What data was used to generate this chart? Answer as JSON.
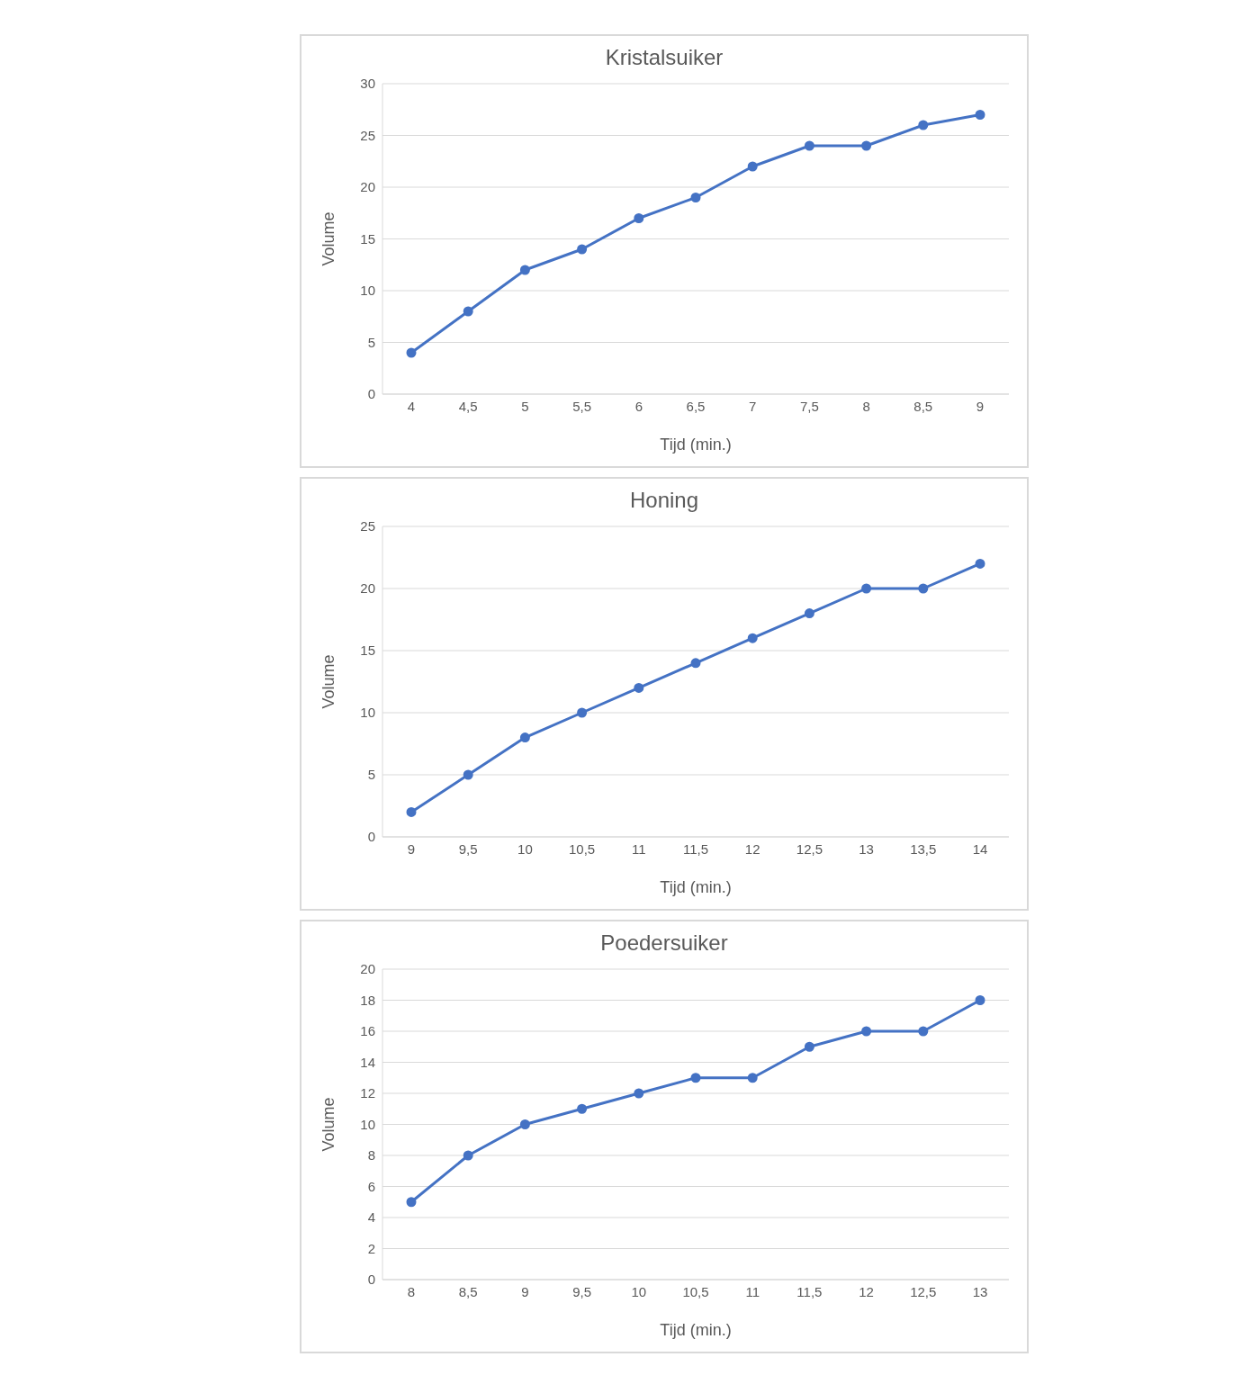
{
  "chart_data": [
    {
      "type": "line",
      "title": "Kristalsuiker",
      "xlabel": "Tijd (min.)",
      "ylabel": "Volume",
      "categories": [
        "4",
        "4,5",
        "5",
        "5,5",
        "6",
        "6,5",
        "7",
        "7,5",
        "8",
        "8,5",
        "9"
      ],
      "series": [
        {
          "color": "#4472c4",
          "values": [
            4,
            8,
            12,
            14,
            17,
            19,
            22,
            24,
            24,
            26,
            27
          ]
        }
      ],
      "ylim": [
        0,
        30
      ],
      "yticks": [
        0,
        5,
        10,
        15,
        20,
        25,
        30
      ],
      "grid": "y",
      "marker": "circle",
      "line_style": "solid"
    },
    {
      "type": "line",
      "title": "Honing",
      "xlabel": "Tijd (min.)",
      "ylabel": "Volume",
      "categories": [
        "9",
        "9,5",
        "10",
        "10,5",
        "11",
        "11,5",
        "12",
        "12,5",
        "13",
        "13,5",
        "14"
      ],
      "series": [
        {
          "color": "#4472c4",
          "values": [
            2,
            5,
            8,
            10,
            12,
            14,
            16,
            18,
            20,
            20,
            22
          ]
        }
      ],
      "ylim": [
        0,
        25
      ],
      "yticks": [
        0,
        5,
        10,
        15,
        20,
        25
      ],
      "grid": "y",
      "marker": "circle",
      "line_style": "solid"
    },
    {
      "type": "line",
      "title": "Poedersuiker",
      "xlabel": "Tijd (min.)",
      "ylabel": "Volume",
      "categories": [
        "8",
        "8,5",
        "9",
        "9,5",
        "10",
        "10,5",
        "11",
        "11,5",
        "12",
        "12,5",
        "13"
      ],
      "series": [
        {
          "color": "#4472c4",
          "values": [
            5,
            8,
            10,
            11,
            12,
            13,
            13,
            15,
            16,
            16,
            18
          ]
        }
      ],
      "ylim": [
        0,
        20
      ],
      "yticks": [
        0,
        2,
        4,
        6,
        8,
        10,
        12,
        14,
        16,
        18,
        20
      ],
      "grid": "y",
      "marker": "circle",
      "line_style": "solid"
    }
  ]
}
